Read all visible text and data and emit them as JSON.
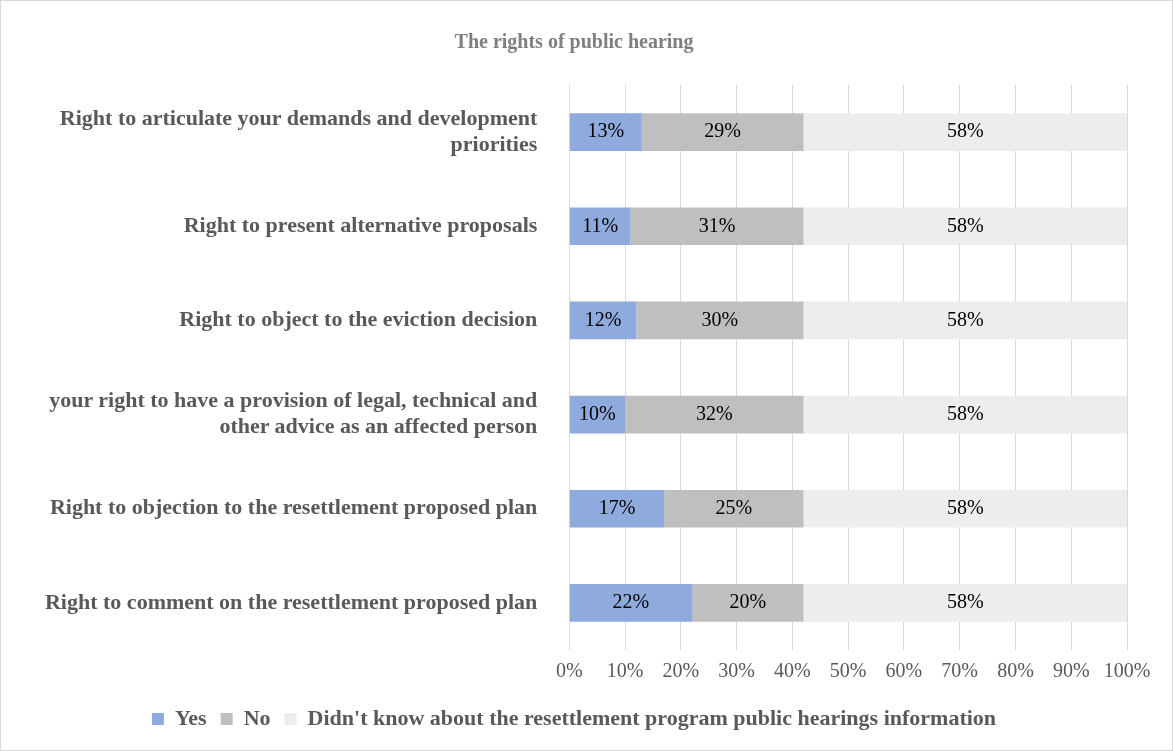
{
  "chart_data": {
    "type": "bar",
    "orientation": "horizontal",
    "stacked": true,
    "title": "The rights of public hearing",
    "categories": [
      "Right to articulate your demands and development priorities",
      "Right to present alternative proposals",
      "Right to object to the eviction decision",
      "your right to have a provision of legal, technical and other advice as an affected person",
      "Right to objection to the resettlement proposed plan",
      "Right to comment on the resettlement proposed plan"
    ],
    "series": [
      {
        "name": "Yes",
        "color": "#8faadc",
        "values": [
          13,
          11,
          12,
          10,
          17,
          22
        ]
      },
      {
        "name": "No",
        "color": "#bfbfbf",
        "values": [
          29,
          31,
          30,
          32,
          25,
          20
        ]
      },
      {
        "name": "Didn't know about the resettlement program public hearings information",
        "color": "#ededed",
        "values": [
          58,
          58,
          58,
          58,
          58,
          58
        ]
      }
    ],
    "xlim": [
      0,
      100
    ],
    "xticks": [
      {
        "value": 0,
        "label": "0%"
      },
      {
        "value": 10,
        "label": "10%"
      },
      {
        "value": 20,
        "label": "20%"
      },
      {
        "value": 30,
        "label": "30%"
      },
      {
        "value": 40,
        "label": "40%"
      },
      {
        "value": 50,
        "label": "50%"
      },
      {
        "value": 60,
        "label": "60%"
      },
      {
        "value": 70,
        "label": "70%"
      },
      {
        "value": 80,
        "label": "80%"
      },
      {
        "value": 90,
        "label": "90%"
      },
      {
        "value": 100,
        "label": "100%"
      }
    ],
    "value_labels": [
      [
        "13%",
        "11%",
        "12%",
        "10%",
        "17%",
        "22%"
      ],
      [
        "29%",
        "31%",
        "30%",
        "32%",
        "25%",
        "20%"
      ],
      [
        "58%",
        "58%",
        "58%",
        "58%",
        "58%",
        "58%"
      ]
    ],
    "grid": "x",
    "legend": "bottom"
  }
}
